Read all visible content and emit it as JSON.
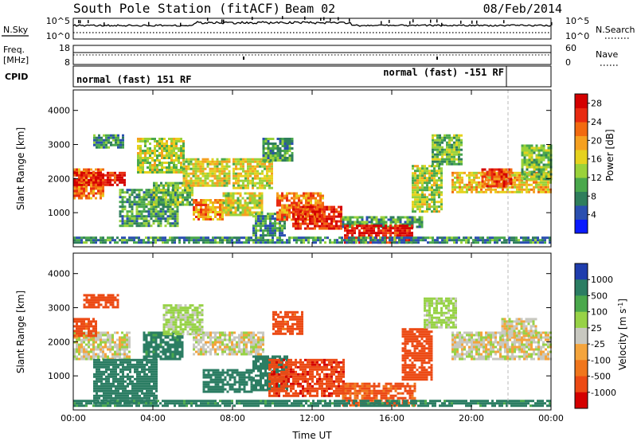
{
  "header": {
    "title": "South Pole Station (fitACF)",
    "beam": "Beam 02",
    "date": "08/Feb/2014"
  },
  "noise_panel": {
    "left_label": "N.Sky",
    "right_label": "N.Search",
    "left_ticks": [
      "10^5",
      "10^0"
    ],
    "right_ticks": [
      "10^5",
      "10^0"
    ]
  },
  "freq_panel": {
    "left_label_1": "Freq.",
    "left_label_2": "[MHz]",
    "right_label": "Nave",
    "left_ticks": [
      "18",
      "8"
    ],
    "right_ticks": [
      "60",
      "0"
    ]
  },
  "cpid_panel": {
    "label": "CPID",
    "mode_1": "normal (fast) 151 RF",
    "mode_2": "normal (fast) -151 RF",
    "switch_hour": 21.8
  },
  "colors": {
    "power": [
      "#0a1aff",
      "#2a4fb0",
      "#2f7e5c",
      "#4aa84c",
      "#9ad23a",
      "#e6d21e",
      "#f5a020",
      "#f26a10",
      "#e82a10",
      "#d40000"
    ],
    "velocity": [
      "#1f3dad",
      "#2b7d63",
      "#4aa84c",
      "#97d246",
      "#c8c8c0",
      "#f4a43c",
      "#f0761c",
      "#ec4a14",
      "#d40000"
    ]
  },
  "chart_data": [
    {
      "type": "heatmap",
      "title": "Power",
      "ylabel": "Slant Range [km]",
      "xlabel": "",
      "x_ticks": [
        "00:00",
        "04:00",
        "08:00",
        "12:00",
        "16:00",
        "20:00",
        "00:00"
      ],
      "y_ticks": [
        "1000",
        "2000",
        "3000",
        "4000"
      ],
      "ylim": [
        0,
        4600
      ],
      "xlim_hours": [
        0,
        24
      ],
      "colorbar": {
        "label": "Power [dB]",
        "ticks": [
          "4",
          "8",
          "12",
          "16",
          "20",
          "24",
          "28"
        ],
        "range": [
          0,
          30
        ]
      },
      "regions": [
        {
          "t0": 0.0,
          "t1": 1.5,
          "r0": 1400,
          "r1": 2300,
          "value": 22
        },
        {
          "t0": 0.0,
          "t1": 2.6,
          "r0": 1800,
          "r1": 2200,
          "value": 28
        },
        {
          "t0": 1.0,
          "t1": 2.5,
          "r0": 2900,
          "r1": 3300,
          "value": 8
        },
        {
          "t0": 2.3,
          "t1": 5.2,
          "r0": 600,
          "r1": 1700,
          "value": 10
        },
        {
          "t0": 3.2,
          "t1": 5.5,
          "r0": 2200,
          "r1": 3200,
          "value": 14
        },
        {
          "t0": 4.0,
          "t1": 6.0,
          "r0": 1200,
          "r1": 1900,
          "value": 12
        },
        {
          "t0": 5.5,
          "t1": 7.8,
          "r0": 1800,
          "r1": 2600,
          "value": 16
        },
        {
          "t0": 6.0,
          "t1": 7.5,
          "r0": 800,
          "r1": 1400,
          "value": 20
        },
        {
          "t0": 7.5,
          "t1": 9.5,
          "r0": 900,
          "r1": 1600,
          "value": 16
        },
        {
          "t0": 8.0,
          "t1": 10.0,
          "r0": 1700,
          "r1": 2600,
          "value": 16
        },
        {
          "t0": 9.5,
          "t1": 11.0,
          "r0": 2500,
          "r1": 3200,
          "value": 10
        },
        {
          "t0": 9.0,
          "t1": 10.6,
          "r0": 300,
          "r1": 1000,
          "value": 8
        },
        {
          "t0": 10.2,
          "t1": 12.6,
          "r0": 800,
          "r1": 1600,
          "value": 22
        },
        {
          "t0": 11.0,
          "t1": 13.5,
          "r0": 500,
          "r1": 1200,
          "value": 26
        },
        {
          "t0": 13.5,
          "t1": 17.5,
          "r0": 600,
          "r1": 900,
          "value": 10
        },
        {
          "t0": 13.6,
          "t1": 17.0,
          "r0": 150,
          "r1": 650,
          "value": 28
        },
        {
          "t0": 17.0,
          "t1": 18.5,
          "r0": 1000,
          "r1": 2400,
          "value": 14
        },
        {
          "t0": 18.0,
          "t1": 19.5,
          "r0": 2400,
          "r1": 3300,
          "value": 12
        },
        {
          "t0": 19.0,
          "t1": 24.0,
          "r0": 1600,
          "r1": 2200,
          "value": 18
        },
        {
          "t0": 20.5,
          "t1": 22.0,
          "r0": 1800,
          "r1": 2300,
          "value": 24
        },
        {
          "t0": 22.5,
          "t1": 24.0,
          "r0": 2000,
          "r1": 3000,
          "value": 12
        },
        {
          "t0": 0.0,
          "t1": 24.0,
          "r0": 100,
          "r1": 300,
          "value": 8
        }
      ]
    },
    {
      "type": "heatmap",
      "title": "Velocity",
      "ylabel": "Slant Range [km]",
      "xlabel": "Time UT",
      "x_ticks": [
        "00:00",
        "04:00",
        "08:00",
        "12:00",
        "16:00",
        "20:00",
        "00:00"
      ],
      "y_ticks": [
        "1000",
        "2000",
        "3000",
        "4000"
      ],
      "ylim": [
        0,
        4600
      ],
      "xlim_hours": [
        0,
        24
      ],
      "colorbar": {
        "label": "Velocity [m s^-1]",
        "ticks": [
          "1000",
          "500",
          "100",
          "25",
          "-25",
          "-100",
          "-500",
          "-1000"
        ],
        "range": [
          1000,
          -1000
        ]
      },
      "regions": [
        {
          "t0": 0.0,
          "t1": 2.8,
          "r0": 1500,
          "r1": 2300,
          "value": 0
        },
        {
          "t0": 0.0,
          "t1": 1.2,
          "r0": 2200,
          "r1": 2700,
          "value": -150
        },
        {
          "t0": 0.5,
          "t1": 2.2,
          "r0": 3000,
          "r1": 3400,
          "value": -200
        },
        {
          "t0": 1.0,
          "t1": 4.2,
          "r0": 200,
          "r1": 1500,
          "value": 300
        },
        {
          "t0": 3.5,
          "t1": 5.5,
          "r0": 1500,
          "r1": 2300,
          "value": 150
        },
        {
          "t0": 4.5,
          "t1": 6.5,
          "r0": 2200,
          "r1": 3100,
          "value": 10
        },
        {
          "t0": 6.0,
          "t1": 9.6,
          "r0": 1600,
          "r1": 2300,
          "value": 0
        },
        {
          "t0": 6.5,
          "t1": 9.0,
          "r0": 500,
          "r1": 1200,
          "value": 200
        },
        {
          "t0": 9.0,
          "t1": 10.8,
          "r0": 600,
          "r1": 1600,
          "value": 300
        },
        {
          "t0": 9.8,
          "t1": 13.6,
          "r0": 400,
          "r1": 1500,
          "value": -400
        },
        {
          "t0": 10.0,
          "t1": 11.5,
          "r0": 2200,
          "r1": 2900,
          "value": -150
        },
        {
          "t0": 13.5,
          "t1": 17.2,
          "r0": 150,
          "r1": 800,
          "value": -120
        },
        {
          "t0": 16.5,
          "t1": 18.0,
          "r0": 900,
          "r1": 2400,
          "value": -300
        },
        {
          "t0": 17.6,
          "t1": 19.2,
          "r0": 2400,
          "r1": 3300,
          "value": 10
        },
        {
          "t0": 19.0,
          "t1": 24.0,
          "r0": 1500,
          "r1": 2300,
          "value": 0
        },
        {
          "t0": 21.5,
          "t1": 23.2,
          "r0": 2200,
          "r1": 2700,
          "value": 0
        },
        {
          "t0": 0.0,
          "t1": 24.0,
          "r0": 100,
          "r1": 300,
          "value": 150
        }
      ]
    }
  ]
}
